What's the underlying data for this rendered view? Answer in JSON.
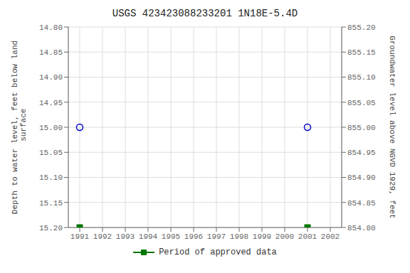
{
  "chart_data": {
    "type": "scatter",
    "title": "USGS 423423088233201 1N18E-5.4D",
    "y_label": "Depth to water level, feet below land\n surface",
    "y2_label": "Groundwater level above NGVD 1929, feet",
    "xlim": [
      1990.5,
      2002.5
    ],
    "xticks": [
      1991,
      1992,
      1993,
      1994,
      1995,
      1996,
      1997,
      1998,
      1999,
      2000,
      2001,
      2002
    ],
    "ylim": [
      15.2,
      14.8
    ],
    "yticks": [
      {
        "value": 14.8,
        "label": "14.80"
      },
      14.85,
      {
        "value": 14.9,
        "label": "14.90"
      },
      14.95,
      {
        "value": 15,
        "label": "15.00"
      },
      15.05,
      {
        "value": 15.1,
        "label": "15.10"
      },
      15.15,
      {
        "value": 15.2,
        "label": "15.20"
      }
    ],
    "y2lim": [
      854.8,
      855.2
    ],
    "y2ticks": [
      {
        "value": 855.2,
        "label": "855.20"
      },
      855.15,
      {
        "value": 855.1,
        "label": "855.10"
      },
      855.05,
      {
        "value": 855,
        "label": "855.00"
      },
      854.95,
      {
        "value": 854.9,
        "label": "854.90"
      },
      854.85,
      {
        "value": 854.8,
        "label": "854.80"
      }
    ],
    "grid": true,
    "legend": "bottom",
    "series": [
      {
        "color": "#0000cc",
        "marker": "circle",
        "x": [
          1991,
          2001
        ],
        "values": [
          15,
          15
        ]
      },
      {
        "name": "Period of approved data",
        "color": "#007700",
        "marker": "square",
        "x": [
          1991,
          2001
        ],
        "values": [
          15.2,
          15.2
        ]
      }
    ]
  }
}
